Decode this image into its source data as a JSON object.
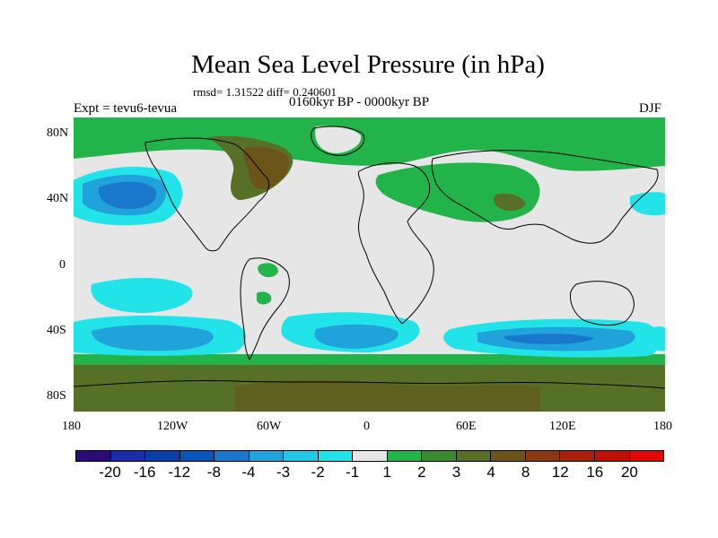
{
  "title": "Mean Sea Level Pressure (in hPa)",
  "stats": "rmsd= 1.31522 diff= 0.240601",
  "period": "0160kyr BP - 0000kyr BP",
  "experiment": "Expt = tevu6-tevua",
  "season": "DJF",
  "lat_labels": [
    "80N",
    "40N",
    "0",
    "40S",
    "80S"
  ],
  "lon_labels": [
    "180",
    "120W",
    "60W",
    "0",
    "60E",
    "120E",
    "180"
  ],
  "colorbar": {
    "labels": [
      "-20",
      "-16",
      "-12",
      "-8",
      "-4",
      "-3",
      "-2",
      "-1",
      "1",
      "2",
      "3",
      "4",
      "8",
      "12",
      "16",
      "20"
    ],
    "colors": [
      "#2d0a7a",
      "#1a2ca8",
      "#0a3fa8",
      "#0a55b8",
      "#1a78cc",
      "#20a2da",
      "#22c8e6",
      "#22e4e8",
      "#e6e6e6",
      "#22b44a",
      "#3a8a30",
      "#567026",
      "#6a5418",
      "#8a3812",
      "#a8200c",
      "#c01008",
      "#e00808"
    ]
  },
  "map_colors": {
    "neutral": "#e6e6e6",
    "cyan_light": "#22e4e8",
    "cyan_mid": "#22c8e6",
    "blue_mid": "#20a2da",
    "blue_dark": "#1a78cc",
    "green": "#22b44a",
    "olive": "#567026",
    "brown": "#6a5418",
    "dark_olive": "#3a8a30",
    "coast": "#000000"
  }
}
